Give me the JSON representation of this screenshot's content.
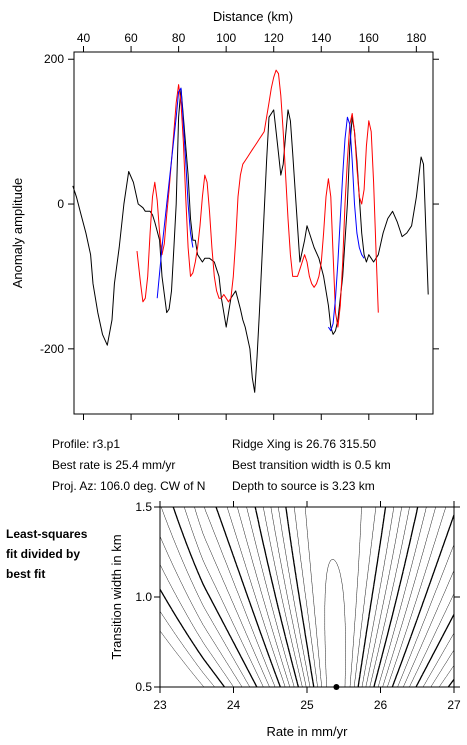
{
  "chart_data": [
    {
      "type": "line",
      "xlabel": "Distance (km)",
      "ylabel": "Anomaly amplitude",
      "xlim": [
        36,
        187
      ],
      "ylim": [
        -290,
        210
      ],
      "x_ticks": [
        40,
        60,
        80,
        100,
        120,
        140,
        160,
        180
      ],
      "y_ticks": [
        200,
        0,
        -200
      ],
      "series": [
        {
          "color": "#000000",
          "x": [
            35.5,
            37,
            39,
            41,
            43,
            44,
            46,
            48,
            50,
            52,
            53,
            55,
            57,
            59,
            61,
            63,
            65,
            66,
            68,
            69,
            70,
            72,
            73,
            75,
            76,
            77,
            78,
            79,
            80,
            81,
            82,
            84,
            85,
            86,
            87,
            88,
            90,
            91,
            93,
            95,
            96,
            97,
            98,
            100,
            102,
            104,
            106,
            107,
            108,
            110,
            111,
            112,
            113,
            114,
            115,
            117,
            118,
            120,
            121,
            122,
            123,
            124,
            125,
            126,
            127,
            128,
            129,
            130,
            131,
            133,
            134,
            135,
            137,
            139,
            141,
            143,
            144,
            145,
            146,
            147,
            149,
            151,
            152,
            153,
            154,
            155,
            156,
            157,
            158,
            159,
            160,
            161,
            162,
            164,
            166,
            168,
            170,
            172,
            174,
            176,
            178,
            180,
            182,
            183,
            185
          ],
          "y": [
            25,
            10,
            -15,
            -40,
            -70,
            -110,
            -150,
            -180,
            -195,
            -160,
            -110,
            -60,
            0,
            45,
            30,
            0,
            -5,
            -10,
            -10,
            -15,
            -25,
            -50,
            -100,
            -150,
            -145,
            -120,
            -60,
            0,
            120,
            160,
            120,
            40,
            -20,
            -50,
            -50,
            -70,
            -80,
            -75,
            -75,
            -80,
            -90,
            -100,
            -130,
            -170,
            -130,
            -120,
            -145,
            -160,
            -170,
            -200,
            -240,
            -260,
            -210,
            -150,
            -80,
            60,
            120,
            130,
            100,
            70,
            40,
            55,
            95,
            130,
            115,
            70,
            20,
            -30,
            -80,
            -50,
            -30,
            -40,
            -60,
            -75,
            -100,
            -140,
            -170,
            -180,
            -175,
            -160,
            -100,
            0,
            80,
            120,
            100,
            60,
            10,
            -40,
            -70,
            -80,
            -70,
            -75,
            -80,
            -70,
            -40,
            -20,
            -10,
            -25,
            -45,
            -40,
            -30,
            10,
            65,
            55,
            -125
          ]
        },
        {
          "color": "#ff0000",
          "x": [
            62.5,
            64,
            65,
            66,
            67,
            68,
            69,
            70,
            71,
            72,
            73,
            74,
            75,
            76,
            77,
            78,
            79,
            80,
            81,
            82,
            83,
            84,
            85,
            86,
            87,
            88,
            89,
            90,
            91,
            92,
            93,
            94,
            95,
            96,
            97,
            98,
            99,
            100,
            101,
            102,
            103,
            104,
            105,
            106,
            107,
            108,
            109,
            110,
            111,
            112,
            113,
            114,
            115,
            116,
            117,
            118,
            119,
            120,
            121,
            122,
            123,
            124,
            125,
            126,
            127,
            128,
            129,
            130,
            131,
            132,
            133,
            134,
            135,
            136,
            137,
            138,
            139,
            140,
            141,
            142,
            143,
            144,
            145,
            146,
            147,
            148,
            149,
            150,
            151,
            152,
            153,
            154,
            155,
            156,
            157,
            158,
            159,
            160,
            161,
            162,
            163,
            164
          ],
          "y": [
            -65,
            -110,
            -135,
            -130,
            -100,
            -40,
            10,
            30,
            5,
            -40,
            -70,
            -55,
            -15,
            20,
            60,
            100,
            140,
            165,
            140,
            85,
            10,
            -60,
            -100,
            -95,
            -80,
            -60,
            -30,
            10,
            40,
            30,
            -10,
            -60,
            -100,
            -120,
            -130,
            -130,
            -125,
            -130,
            -135,
            -130,
            -100,
            -50,
            10,
            40,
            55,
            60,
            65,
            70,
            75,
            80,
            85,
            90,
            95,
            100,
            120,
            140,
            160,
            175,
            185,
            180,
            150,
            100,
            40,
            -20,
            -70,
            -100,
            -100,
            -100,
            -90,
            -80,
            -70,
            -80,
            -100,
            -110,
            -115,
            -110,
            -100,
            -80,
            -40,
            10,
            35,
            10,
            -70,
            -150,
            -170,
            -140,
            -80,
            0,
            60,
            110,
            125,
            100,
            50,
            10,
            0,
            20,
            80,
            115,
            100,
            30,
            -60,
            -150
          ]
        },
        {
          "color": "#0000ff",
          "x": [
            71,
            73,
            75,
            77,
            79,
            80,
            81,
            82,
            83,
            84,
            85,
            86
          ],
          "y": [
            -130,
            -60,
            0,
            60,
            120,
            155,
            160,
            110,
            60,
            0,
            -40,
            -60
          ]
        },
        {
          "color": "#0000ff",
          "x": [
            143,
            144,
            145,
            146,
            147,
            148,
            149,
            150,
            151,
            152,
            153,
            154,
            155,
            156,
            157,
            158
          ],
          "y": [
            -170,
            -175,
            -165,
            -130,
            -80,
            -20,
            40,
            90,
            120,
            110,
            60,
            0,
            -40,
            -60,
            -70,
            -75
          ]
        }
      ]
    },
    {
      "type": "contour",
      "xlabel": "Rate in mm/yr",
      "ylabel": "Transition width in km",
      "xlim": [
        23,
        27
      ],
      "ylim": [
        0.5,
        1.5
      ],
      "x_ticks": [
        "23",
        "24",
        "25",
        "26",
        "27"
      ],
      "y_ticks": [
        "1.5",
        "1.0",
        "0.5"
      ],
      "best_fit_point": {
        "x": 25.4,
        "y": 0.5
      }
    }
  ],
  "info": {
    "profile": "Profile: r3.p1",
    "best_rate": "Best rate is 25.4 mm/yr",
    "proj_az": "Proj. Az: 106.0 deg. CW of N",
    "ridge_xing": "Ridge Xing is 26.76 315.50",
    "best_width": "Best transition width is 0.5 km",
    "depth": "Depth to source is   3.23 km"
  },
  "side_note": {
    "line1": "Least-squares",
    "line2": "fit divided by",
    "line3": "best fit"
  }
}
